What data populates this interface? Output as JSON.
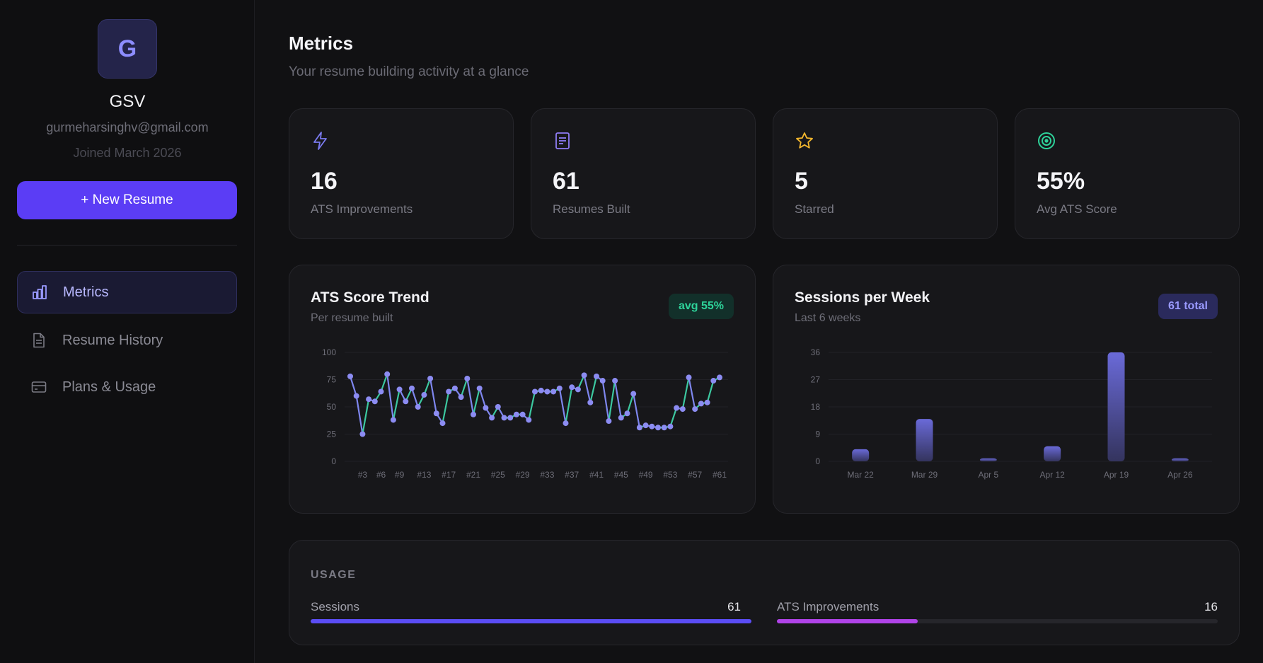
{
  "user": {
    "initial": "G",
    "name": "GSV",
    "email": "gurmeharsinghv@gmail.com",
    "joined": "Joined March 2026"
  },
  "sidebar": {
    "new_button": "+ New Resume",
    "items": [
      {
        "label": "Metrics",
        "icon": "bar-chart-icon",
        "active": true
      },
      {
        "label": "Resume History",
        "icon": "document-icon",
        "active": false
      },
      {
        "label": "Plans & Usage",
        "icon": "credit-card-icon",
        "active": false
      }
    ]
  },
  "header": {
    "title": "Metrics",
    "subtitle": "Your resume building activity at a glance"
  },
  "stats": [
    {
      "value": "16",
      "label": "ATS Improvements",
      "icon": "lightning-icon",
      "color": "#7b7bf0"
    },
    {
      "value": "61",
      "label": "Resumes Built",
      "icon": "document-icon",
      "color": "#8f7cf5"
    },
    {
      "value": "5",
      "label": "Starred",
      "icon": "star-icon",
      "color": "#f5b82e"
    },
    {
      "value": "55%",
      "label": "Avg ATS Score",
      "icon": "target-icon",
      "color": "#2ed39a"
    }
  ],
  "ats_trend": {
    "title": "ATS Score Trend",
    "subtitle": "Per resume built",
    "badge": "avg 55%"
  },
  "sessions": {
    "title": "Sessions per Week",
    "subtitle": "Last 6 weeks",
    "badge": "61 total"
  },
  "usage": {
    "heading": "USAGE",
    "items": [
      {
        "label": "Sessions",
        "count": "61",
        "fraction": 1.0,
        "color": "#5b4df5"
      },
      {
        "label": "ATS Improvements",
        "count": "16",
        "fraction": 0.32,
        "color": "#b043e8"
      }
    ]
  },
  "chart_data": [
    {
      "type": "line",
      "title": "ATS Score Trend",
      "ylim": [
        0,
        100
      ],
      "y_ticks": [
        0,
        25,
        50,
        75,
        100
      ],
      "x": [
        1,
        2,
        3,
        4,
        5,
        6,
        7,
        8,
        9,
        10,
        11,
        12,
        13,
        14,
        15,
        16,
        17,
        18,
        19,
        20,
        21,
        22,
        23,
        24,
        25,
        26,
        27,
        28,
        29,
        30,
        31,
        32,
        33,
        34,
        35,
        36,
        37,
        38,
        39,
        40,
        41,
        42,
        43,
        44,
        45,
        46,
        47,
        48,
        49,
        50,
        51,
        52,
        53,
        54,
        55,
        56,
        57,
        58,
        59,
        60,
        61
      ],
      "x_tick_labels": [
        "#3",
        "#6",
        "#9",
        "#13",
        "#17",
        "#21",
        "#25",
        "#29",
        "#33",
        "#37",
        "#41",
        "#45",
        "#49",
        "#53",
        "#57",
        "#61"
      ],
      "x_tick_positions": [
        3,
        6,
        9,
        13,
        17,
        21,
        25,
        29,
        33,
        37,
        41,
        45,
        49,
        53,
        57,
        61
      ],
      "values": [
        78,
        60,
        25,
        57,
        55,
        64,
        80,
        38,
        66,
        55,
        67,
        50,
        61,
        76,
        44,
        35,
        64,
        67,
        59,
        76,
        43,
        67,
        49,
        40,
        50,
        40,
        40,
        43,
        43,
        38,
        64,
        65,
        64,
        64,
        67,
        35,
        68,
        66,
        79,
        54,
        78,
        74,
        37,
        74,
        40,
        44,
        62,
        31,
        33,
        32,
        31,
        31,
        32,
        49,
        48,
        77,
        48,
        53,
        54,
        74,
        77
      ],
      "grid": true
    },
    {
      "type": "bar",
      "title": "Sessions per Week",
      "categories": [
        "Mar 22",
        "Mar 29",
        "Apr 5",
        "Apr 12",
        "Apr 19",
        "Apr 26"
      ],
      "values": [
        4,
        14,
        1,
        5,
        36,
        1
      ],
      "ylim": [
        0,
        36
      ],
      "y_ticks": [
        0,
        9,
        18,
        27,
        36
      ],
      "grid": true
    }
  ]
}
